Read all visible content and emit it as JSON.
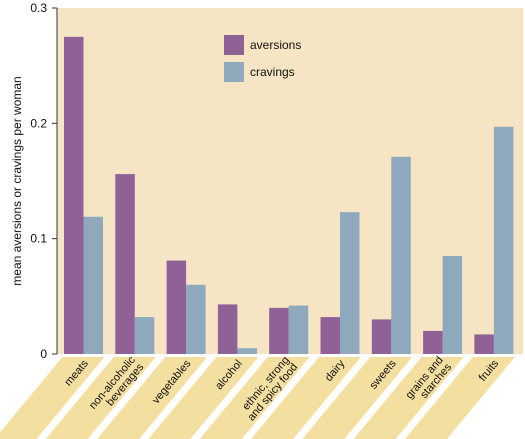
{
  "chart_data": {
    "type": "bar",
    "title": "",
    "xlabel": "",
    "ylabel": "mean aversions or cravings per woman",
    "ylim": [
      0,
      0.3
    ],
    "yticks": [
      "0",
      "0.1",
      "0.2",
      "0.3"
    ],
    "ytick_values": [
      0,
      0.1,
      0.2,
      0.3
    ],
    "grid": false,
    "legend_position": "top-center",
    "categories": [
      [
        "meats"
      ],
      [
        "non-alcoholic",
        "beverages"
      ],
      [
        "vegetables"
      ],
      [
        "alcohol"
      ],
      [
        "ethnic, strong",
        "and spicy food"
      ],
      [
        "dairy"
      ],
      [
        "sweets"
      ],
      [
        "grains and",
        "starches"
      ],
      [
        "fruits"
      ]
    ],
    "series": [
      {
        "name": "aversions",
        "color": "#8f6196",
        "values": [
          0.275,
          0.156,
          0.081,
          0.043,
          0.04,
          0.032,
          0.03,
          0.02,
          0.017
        ]
      },
      {
        "name": "cravings",
        "color": "#8fa9bc",
        "values": [
          0.119,
          0.032,
          0.06,
          0.005,
          0.042,
          0.123,
          0.171,
          0.085,
          0.197
        ]
      }
    ],
    "colors": {
      "plot_background": "#f6e5c5",
      "label_band": "#f3df9f"
    }
  }
}
